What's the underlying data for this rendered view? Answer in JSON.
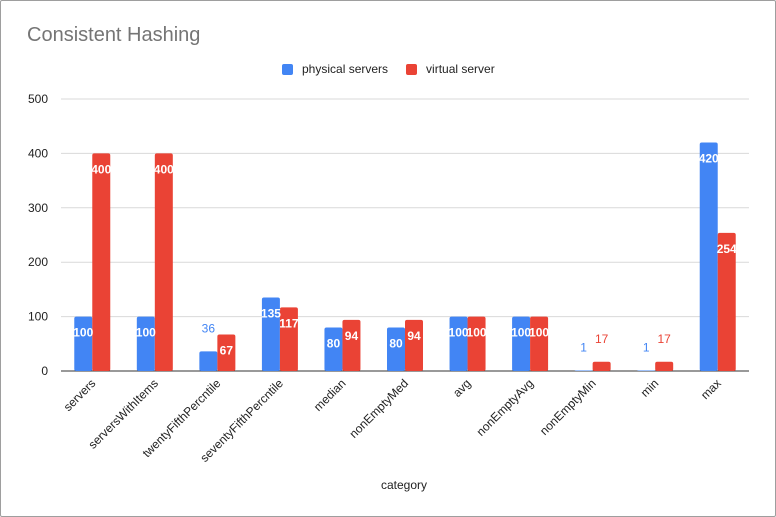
{
  "chart_data": {
    "type": "bar",
    "title": "Consistent Hashing",
    "xlabel": "category",
    "ylabel": "",
    "ylim": [
      0,
      500
    ],
    "yticks": [
      0,
      100,
      200,
      300,
      400,
      500
    ],
    "grid": true,
    "legend_position": "top",
    "categories": [
      "servers",
      "serversWithItems",
      "twentyFifthPercntile",
      "seventyFifthPercntile",
      "median",
      "nonEmptyMed",
      "avg",
      "nonEmptyAvg",
      "nonEmptyMin",
      "min",
      "max"
    ],
    "series": [
      {
        "name": "physical servers",
        "color": "#4285f4",
        "values": [
          100,
          100,
          36,
          135,
          80,
          80,
          100,
          100,
          1,
          1,
          420
        ]
      },
      {
        "name": "virtual server",
        "color": "#ea4335",
        "values": [
          400,
          400,
          67,
          117,
          94,
          94,
          100,
          100,
          17,
          17,
          254
        ]
      }
    ]
  }
}
